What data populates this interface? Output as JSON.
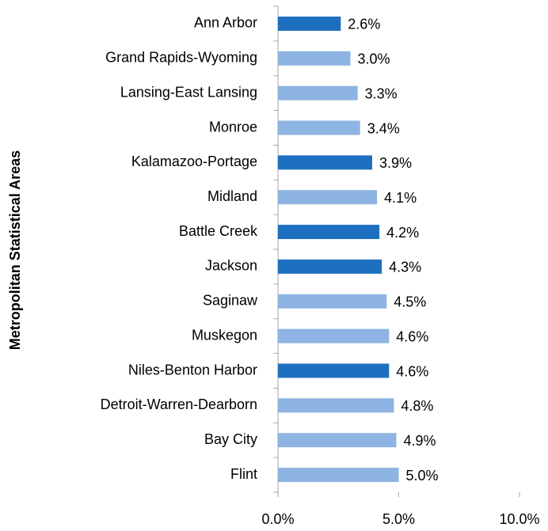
{
  "chart_data": {
    "type": "bar",
    "orientation": "horizontal",
    "y_label": "Metropolitan Statistical Areas",
    "categories": [
      "Ann Arbor",
      "Grand Rapids-Wyoming",
      "Lansing-East Lansing",
      "Monroe",
      "Kalamazoo-Portage",
      "Midland",
      "Battle Creek",
      "Jackson",
      "Saginaw",
      "Muskegon",
      "Niles-Benton Harbor",
      "Detroit-Warren-Dearborn",
      "Bay City",
      "Flint"
    ],
    "values": [
      2.6,
      3.0,
      3.3,
      3.4,
      3.9,
      4.1,
      4.2,
      4.3,
      4.5,
      4.6,
      4.6,
      4.8,
      4.9,
      5.0
    ],
    "value_labels": [
      "2.6%",
      "3.0%",
      "3.3%",
      "3.4%",
      "3.9%",
      "4.1%",
      "4.2%",
      "4.3%",
      "4.5%",
      "4.6%",
      "4.6%",
      "4.8%",
      "4.9%",
      "5.0%"
    ],
    "colors": [
      "#1f6fc0",
      "#8db4e2",
      "#8db4e2",
      "#8db4e2",
      "#1f6fc0",
      "#8db4e2",
      "#1f6fc0",
      "#1f6fc0",
      "#8db4e2",
      "#8db4e2",
      "#1f6fc0",
      "#8db4e2",
      "#8db4e2",
      "#8db4e2"
    ],
    "xlim": [
      0,
      10
    ],
    "xticks": [
      {
        "value": 0,
        "label": "0.0%"
      },
      {
        "value": 5,
        "label": "5.0%"
      },
      {
        "value": 10,
        "label": "10.0%"
      }
    ],
    "grid": false
  }
}
